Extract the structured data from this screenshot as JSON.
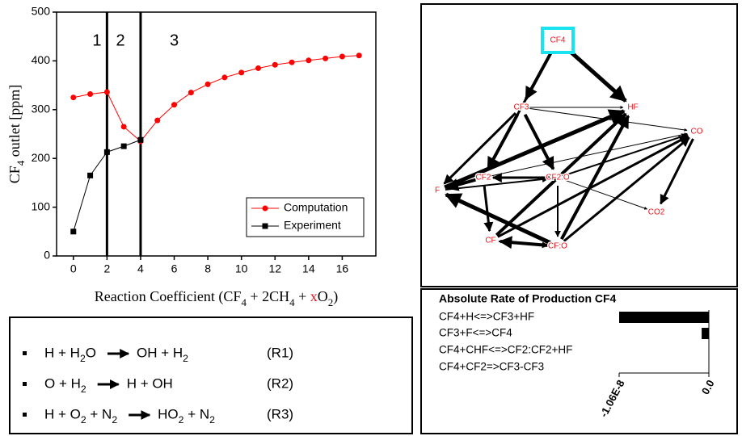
{
  "chart_data": [
    {
      "type": "line",
      "y_label": "CF4 outlet [ppm]",
      "x_label": [
        "Reaction Coefficient (CF4 + 2CH4 + ",
        "x",
        "O2)"
      ],
      "x_label_highlight_color": "#e8141b",
      "xlim": [
        -1,
        18
      ],
      "xticks": [
        0,
        2,
        4,
        6,
        8,
        10,
        12,
        14,
        16
      ],
      "ylim": [
        0,
        500
      ],
      "yticks": [
        0,
        100,
        200,
        300,
        400,
        500
      ],
      "vlines": [
        2,
        4
      ],
      "regions": [
        "1",
        "2",
        "3"
      ],
      "legend": "lower right",
      "series": [
        {
          "name": "Computation",
          "color": "#ff0000",
          "marker": "circle",
          "x": [
            0,
            1,
            2,
            3,
            4,
            5,
            6,
            7,
            8,
            9,
            10,
            11,
            12,
            13,
            14,
            15,
            16,
            17
          ],
          "values": [
            325,
            332,
            336,
            265,
            235,
            278,
            310,
            335,
            352,
            366,
            376,
            385,
            392,
            397,
            401,
            405,
            409,
            411
          ]
        },
        {
          "name": "Experiment",
          "color": "#000000",
          "marker": "square",
          "x": [
            0,
            1,
            2,
            3,
            4
          ],
          "values": [
            50,
            165,
            213,
            225,
            238
          ]
        }
      ]
    },
    {
      "type": "bar",
      "orientation": "horizontal",
      "title": "Absolute Rate of Production CF4",
      "categories": [
        "CF4+H<=>CF3+HF",
        "CF3+F<=>CF4",
        "CF4+CHF<=>CF2:CF2+HF",
        "CF4+CF2=>CF3-CF3"
      ],
      "values": [
        -1.06e-08,
        -8.5e-10,
        0,
        0
      ],
      "color": "#000000",
      "xlim": [
        -1.06e-08,
        0
      ],
      "xticks": [
        {
          "value": -1.06e-08,
          "label": "-1.06E-8"
        },
        {
          "value": 0,
          "label": "0.0"
        }
      ]
    }
  ],
  "network": {
    "nodes": [
      {
        "label": "CF4"
      },
      {
        "label": "CF3"
      },
      {
        "label": "HF"
      },
      {
        "label": "CO"
      },
      {
        "label": "CF2"
      },
      {
        "label": "CF2:O"
      },
      {
        "label": "F"
      },
      {
        "label": "CO2"
      },
      {
        "label": "CF"
      },
      {
        "label": "CF:O"
      }
    ]
  },
  "reactions": {
    "items": [
      {
        "lhs": "H + H2O",
        "rhs": "OH + H2",
        "label": "(R1)"
      },
      {
        "lhs": "O + H2",
        "rhs": "H + OH",
        "label": "(R2)"
      },
      {
        "lhs": "H + O2 + N2",
        "rhs": "HO2 + N2",
        "label": "(R3)"
      }
    ]
  }
}
